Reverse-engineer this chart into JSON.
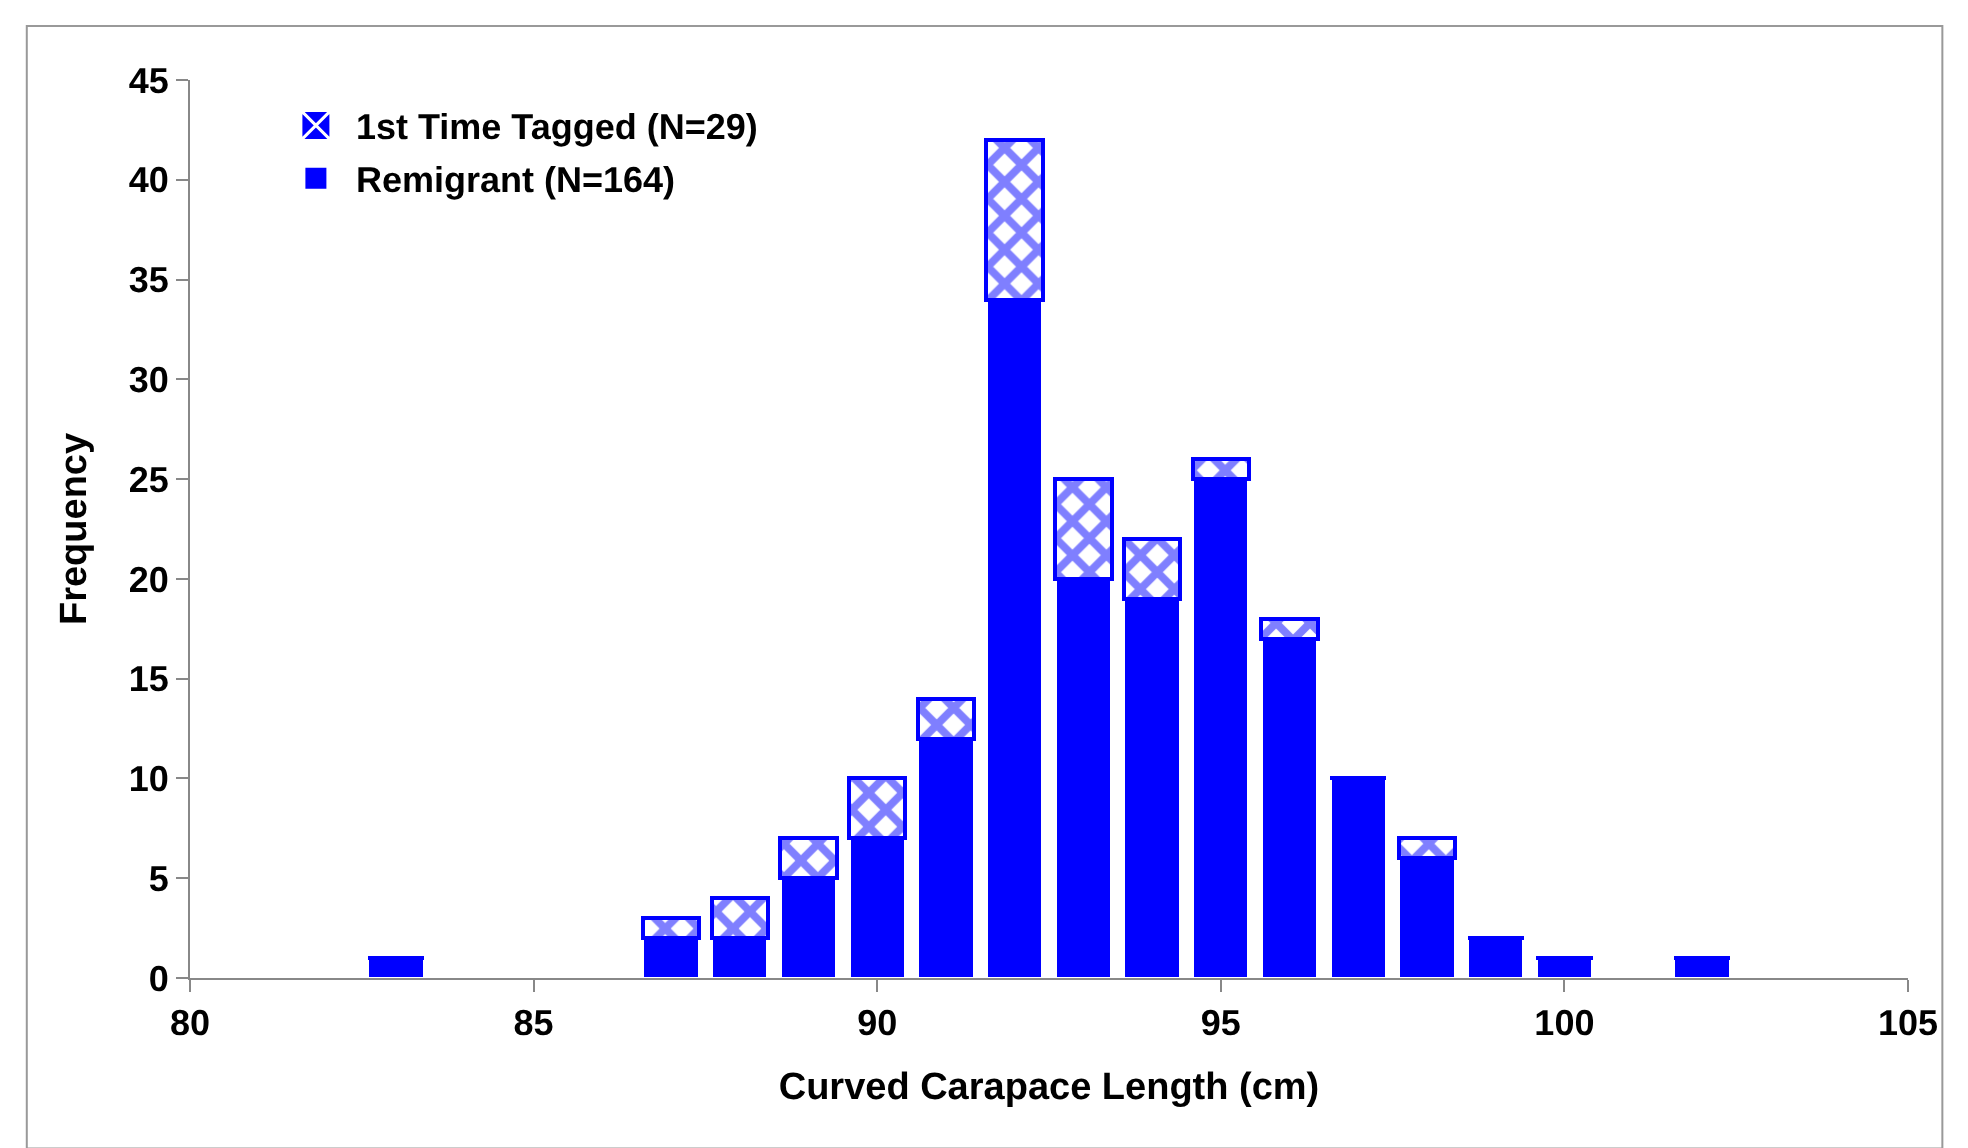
{
  "chart_data": {
    "type": "bar",
    "stacked": true,
    "xlabel": "Curved Carapace Length (cm)",
    "ylabel": "Frequency",
    "x": [
      83,
      87,
      88,
      89,
      90,
      91,
      92,
      93,
      94,
      95,
      96,
      97,
      98,
      99,
      100,
      102
    ],
    "series": [
      {
        "name": "Remigrant (N=164)",
        "color": "#0000ff",
        "values": [
          1,
          2,
          2,
          5,
          7,
          12,
          34,
          20,
          19,
          25,
          17,
          10,
          6,
          2,
          1,
          1
        ]
      },
      {
        "name": "1st Time Tagged (N=29)",
        "color": "#0000ff",
        "values": [
          0,
          1,
          2,
          2,
          3,
          2,
          8,
          5,
          3,
          1,
          1,
          0,
          1,
          0,
          0,
          0
        ]
      }
    ],
    "xlim": [
      80,
      105
    ],
    "xticks": [
      80,
      85,
      90,
      95,
      100,
      105
    ],
    "ylim": [
      0,
      45
    ],
    "yticks": [
      0,
      5,
      10,
      15,
      20,
      25,
      30,
      35,
      40,
      45
    ],
    "legend": "top left"
  }
}
